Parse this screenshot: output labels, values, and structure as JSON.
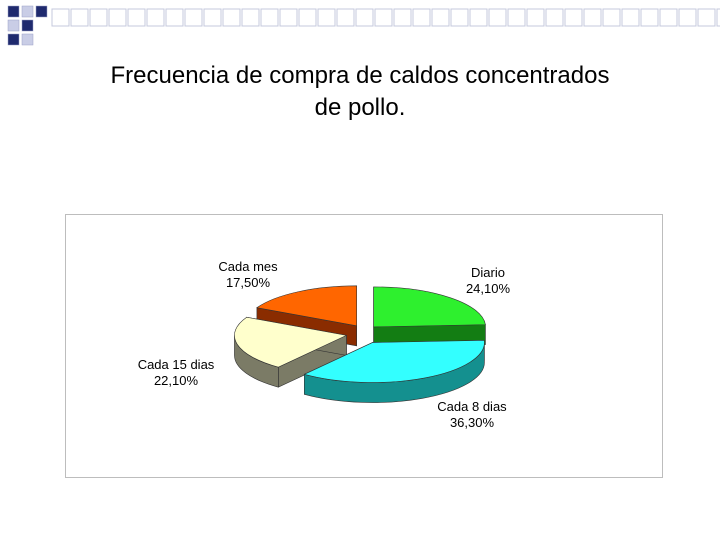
{
  "title_line1": "Frecuencia de compra de caldos concentrados",
  "title_line2": "de pollo.",
  "colors": {
    "decor_dark": "#1f2a6e",
    "decor_light": "#c9cde6",
    "frame": "#bdbdbd"
  },
  "chart_data": {
    "type": "pie",
    "style": "3d-exploded",
    "title": "",
    "categories": [
      "Diario",
      "Cada 8 dias",
      "Cada 15 dias",
      "Cada mes"
    ],
    "values": [
      24.1,
      36.3,
      22.1,
      17.5
    ],
    "value_labels": [
      "24,10%",
      "36,30%",
      "22,10%",
      "17,50%"
    ],
    "colors_top": [
      "#2ef02e",
      "#33ffff",
      "#ffffcc",
      "#ff6600"
    ],
    "colors_side": [
      "#137d13",
      "#14908f",
      "#7b7b66",
      "#8a2c00"
    ],
    "legend": "none"
  }
}
